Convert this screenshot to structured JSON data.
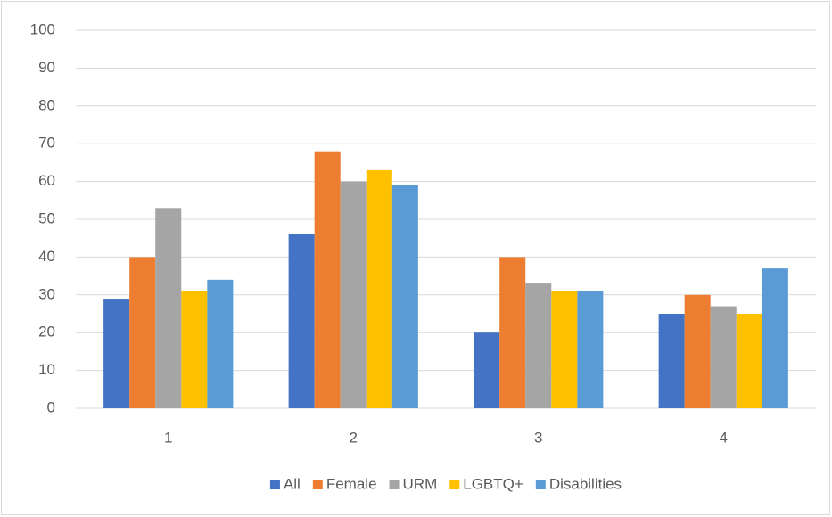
{
  "chart_data": {
    "type": "bar",
    "categories": [
      "1",
      "2",
      "3",
      "4"
    ],
    "series": [
      {
        "name": "All",
        "color": "#4472c4",
        "values": [
          29,
          46,
          20,
          25
        ]
      },
      {
        "name": "Female",
        "color": "#ed7d31",
        "values": [
          40,
          68,
          40,
          30
        ]
      },
      {
        "name": "URM",
        "color": "#a5a5a5",
        "values": [
          53,
          60,
          33,
          27
        ]
      },
      {
        "name": "LGBTQ+",
        "color": "#ffc000",
        "values": [
          31,
          63,
          31,
          25
        ]
      },
      {
        "name": "Disabilities",
        "color": "#5b9bd5",
        "values": [
          34,
          59,
          31,
          37
        ]
      }
    ],
    "ylim": [
      0,
      100
    ],
    "yticks": [
      0,
      10,
      20,
      30,
      40,
      50,
      60,
      70,
      80,
      90,
      100
    ],
    "grid": true,
    "legend": "bottom"
  }
}
